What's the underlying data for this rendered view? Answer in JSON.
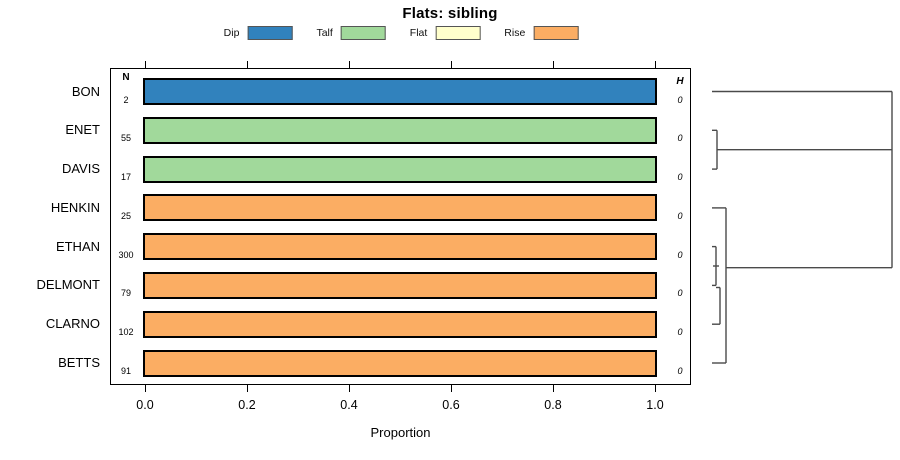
{
  "title": "Flats: sibling",
  "legend": {
    "items": [
      {
        "label": "Dip",
        "color": "#3182bd"
      },
      {
        "label": "Talf",
        "color": "#a1d99b"
      },
      {
        "label": "Flat",
        "color": "#ffffcc"
      },
      {
        "label": "Rise",
        "color": "#fbad63"
      }
    ]
  },
  "columns": {
    "n_header": "N",
    "h_header": "H"
  },
  "xaxis": {
    "label": "Proportion",
    "tick_labels": [
      "0.0",
      "0.2",
      "0.4",
      "0.6",
      "0.8",
      "1.0"
    ]
  },
  "chart_data": {
    "type": "bar",
    "orientation": "horizontal",
    "title": "Flats: sibling",
    "xlabel": "Proportion",
    "xlim": [
      0,
      1.04
    ],
    "x_ticks": [
      0.0,
      0.2,
      0.4,
      0.6,
      0.8,
      1.0
    ],
    "grid": false,
    "legend_position": "top",
    "categories": [
      "BON",
      "ENET",
      "DAVIS",
      "HENKIN",
      "ETHAN",
      "DELMONT",
      "CLARNO",
      "BETTS"
    ],
    "series": [
      {
        "name": "Dip",
        "color": "#3182bd",
        "values": [
          1,
          0,
          0,
          0,
          0,
          0,
          0,
          0
        ]
      },
      {
        "name": "Talf",
        "color": "#a1d99b",
        "values": [
          0,
          1,
          1,
          0,
          0,
          0,
          0,
          0
        ]
      },
      {
        "name": "Flat",
        "color": "#ffffcc",
        "values": [
          0,
          0,
          0,
          0,
          0,
          0,
          0,
          0
        ]
      },
      {
        "name": "Rise",
        "color": "#fbad63",
        "values": [
          0,
          0,
          0,
          1,
          1,
          1,
          1,
          1
        ]
      }
    ],
    "rows": [
      {
        "label": "BON",
        "n": "2",
        "h": "0",
        "category": "Dip",
        "proportion": 1.0
      },
      {
        "label": "ENET",
        "n": "55",
        "h": "0",
        "category": "Talf",
        "proportion": 1.0
      },
      {
        "label": "DAVIS",
        "n": "17",
        "h": "0",
        "category": "Talf",
        "proportion": 1.0
      },
      {
        "label": "HENKIN",
        "n": "25",
        "h": "0",
        "category": "Rise",
        "proportion": 1.0
      },
      {
        "label": "ETHAN",
        "n": "300",
        "h": "0",
        "category": "Rise",
        "proportion": 1.0
      },
      {
        "label": "DELMONT",
        "n": "79",
        "h": "0",
        "category": "Rise",
        "proportion": 1.0
      },
      {
        "label": "CLARNO",
        "n": "102",
        "h": "0",
        "category": "Rise",
        "proportion": 1.0
      },
      {
        "label": "BETTS",
        "n": "91",
        "h": "0",
        "category": "Rise",
        "proportion": 1.0
      }
    ],
    "dendrogram": {
      "description": "Right-side cluster tree; all displayed merge heights H = 0; top-level join of BON, (ENET+DAVIS) and (HENKIN,ETHAN,DELMONT,CLARNO,BETTS) at far right",
      "line_color": "#4a4a4a",
      "segments": [
        [
          712,
          91.5,
          892,
          91.5
        ],
        [
          712,
          130.3,
          717,
          130.3
        ],
        [
          717,
          130.3,
          717,
          169.1
        ],
        [
          712,
          169.1,
          717,
          169.1
        ],
        [
          717,
          149.7,
          892,
          149.7
        ],
        [
          892,
          91.5,
          892,
          267.7
        ],
        [
          726,
          267.7,
          892,
          267.7
        ],
        [
          712,
          207.9,
          726,
          207.9
        ],
        [
          726,
          207.9,
          726,
          363.0
        ],
        [
          712,
          363.0,
          726,
          363.0
        ],
        [
          712,
          246.6,
          716,
          246.6
        ],
        [
          716,
          246.6,
          716,
          285.4
        ],
        [
          712,
          285.4,
          716,
          285.4
        ],
        [
          713,
          266.0,
          719,
          266.0
        ],
        [
          716,
          287.5,
          720,
          287.5
        ],
        [
          720,
          287.5,
          720,
          324.2
        ],
        [
          712,
          324.2,
          720,
          324.2
        ]
      ]
    }
  }
}
